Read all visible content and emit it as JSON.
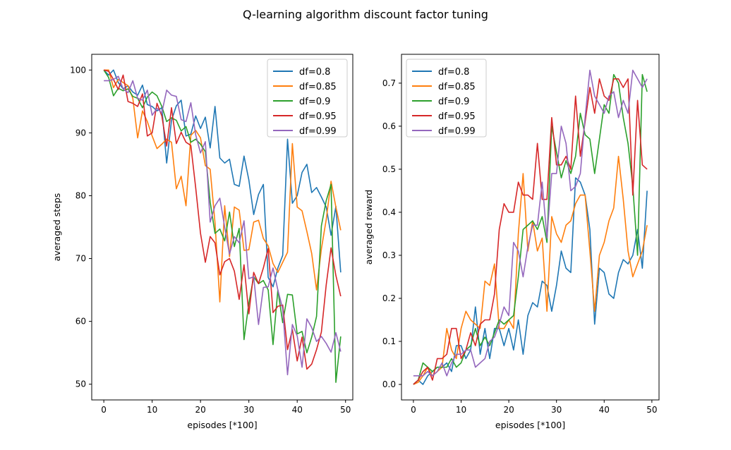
{
  "figure": {
    "title": "Q-learning algorithm discount factor tuning"
  },
  "chart_data": [
    {
      "type": "line",
      "xlabel": "episodes [*100]",
      "ylabel": "averaged steps",
      "xlim": [
        -2.5,
        51.5
      ],
      "ylim": [
        47.5,
        102.5
      ],
      "xticks": [
        0,
        10,
        20,
        30,
        40,
        50
      ],
      "yticks": [
        50,
        60,
        70,
        80,
        90,
        100
      ],
      "legend": "top-right",
      "grid": false,
      "x": [
        0,
        1,
        2,
        3,
        4,
        5,
        6,
        7,
        8,
        9,
        10,
        11,
        12,
        13,
        14,
        15,
        16,
        17,
        18,
        19,
        20,
        21,
        22,
        23,
        24,
        25,
        26,
        27,
        28,
        29,
        30,
        31,
        32,
        33,
        34,
        35,
        36,
        37,
        38,
        39,
        40,
        41,
        42,
        43,
        44,
        45,
        46,
        47,
        48,
        49
      ],
      "series": [
        {
          "name": "df=0.8",
          "color": "#1f77b4",
          "values": [
            100,
            99.2,
            100,
            98,
            97,
            97.5,
            96.5,
            96,
            97.6,
            94.5,
            94.2,
            93.5,
            94,
            85.2,
            92,
            94.3,
            95.2,
            89.5,
            89.8,
            92.7,
            90.7,
            92.5,
            87.6,
            94.2,
            86,
            85.2,
            85.8,
            81.8,
            81.5,
            86.3,
            82.5,
            77,
            80.2,
            81.8,
            67,
            65.5,
            68.5,
            70.5,
            89,
            78.8,
            80,
            83.7,
            85,
            80.5,
            81.3,
            79.8,
            78.2,
            73.7,
            78.3,
            67.8
          ]
        },
        {
          "name": "df=0.85",
          "color": "#ff7f0e",
          "values": [
            100,
            100,
            97.2,
            98.5,
            98,
            97.5,
            95.5,
            89.2,
            93.5,
            91.8,
            89.5,
            87.5,
            88.2,
            89,
            88.5,
            81.1,
            83.1,
            78.4,
            89.6,
            90.4,
            89.2,
            84.8,
            84.2,
            75.7,
            63.1,
            78.4,
            70.3,
            78.2,
            77.7,
            71.3,
            71.4,
            75.8,
            76.1,
            73.2,
            72,
            69.2,
            67.8,
            69.4,
            71,
            88.3,
            78.2,
            77.6,
            74.3,
            70.8,
            65,
            71.5,
            76.2,
            82.3,
            78.2,
            74.5
          ]
        },
        {
          "name": "df=0.9",
          "color": "#2ca02c",
          "values": [
            100,
            98.8,
            95.9,
            97.1,
            96.7,
            97,
            95.8,
            95.5,
            94,
            95.7,
            96.5,
            95.9,
            94.2,
            91.8,
            92.4,
            92,
            90.3,
            91,
            88.5,
            89,
            88.2,
            87,
            79,
            74,
            74.7,
            72.8,
            77.4,
            71.9,
            74.8,
            57.1,
            62.9,
            67.1,
            66,
            66.5,
            65,
            56.3,
            65,
            59.8,
            64.3,
            64.2,
            58,
            58.4,
            55,
            57.5,
            60.8,
            75.2,
            79.2,
            81.8,
            50.3,
            57.6
          ]
        },
        {
          "name": "df=0.95",
          "color": "#d62728",
          "values": [
            100,
            99.8,
            98.5,
            96.9,
            99.2,
            95,
            94.7,
            94.2,
            96.2,
            89.5,
            90,
            94.7,
            92.7,
            87.9,
            94,
            88.3,
            90.1,
            88.5,
            88,
            81.3,
            74,
            69.4,
            73.5,
            72.5,
            67.4,
            69.5,
            70,
            68,
            63.5,
            69,
            61.2,
            67.8,
            66,
            68.5,
            71.6,
            61.4,
            62.4,
            62.6,
            55.5,
            58.7,
            53.7,
            57.5,
            52.4,
            53.2,
            55.5,
            58.3,
            65.8,
            71.7,
            67.3,
            64
          ]
        },
        {
          "name": "df=0.99",
          "color": "#9467bd",
          "values": [
            98.3,
            98.3,
            98.5,
            99,
            97,
            96.4,
            98.3,
            95.5,
            95.2,
            96.8,
            92.8,
            93.9,
            93.2,
            96.8,
            96,
            95.8,
            92.1,
            91.8,
            94.8,
            89.7,
            86.8,
            88.6,
            75.8,
            78.4,
            79.6,
            75,
            70.7,
            73.5,
            72.5,
            76,
            66.8,
            67.1,
            59.5,
            65.4,
            65.5,
            68.5,
            65,
            62,
            51.5,
            59.5,
            57.7,
            52.7,
            60.4,
            59,
            56.8,
            57.6,
            56.5,
            55.1,
            58.2,
            55.2
          ]
        }
      ]
    },
    {
      "type": "line",
      "xlabel": "episodes [*100]",
      "ylabel": "averaged reward",
      "xlim": [
        -2.5,
        51.5
      ],
      "ylim": [
        -0.036,
        0.767
      ],
      "xticks": [
        0,
        10,
        20,
        30,
        40,
        50
      ],
      "yticks": [
        0.0,
        0.1,
        0.2,
        0.3,
        0.4,
        0.5,
        0.6,
        0.7
      ],
      "ytick_labels": [
        "0.0",
        "0.1",
        "0.2",
        "0.3",
        "0.4",
        "0.5",
        "0.6",
        "0.7"
      ],
      "legend": "top-left",
      "grid": false,
      "x": [
        0,
        1,
        2,
        3,
        4,
        5,
        6,
        7,
        8,
        9,
        10,
        11,
        12,
        13,
        14,
        15,
        16,
        17,
        18,
        19,
        20,
        21,
        22,
        23,
        24,
        25,
        26,
        27,
        28,
        29,
        30,
        31,
        32,
        33,
        34,
        35,
        36,
        37,
        38,
        39,
        40,
        41,
        42,
        43,
        44,
        45,
        46,
        47,
        48,
        49
      ],
      "series": [
        {
          "name": "df=0.8",
          "color": "#1f77b4",
          "values": [
            0,
            0.01,
            0,
            0.02,
            0.03,
            0.04,
            0.04,
            0.05,
            0.03,
            0.09,
            0.09,
            0.06,
            0.08,
            0.18,
            0.07,
            0.13,
            0.06,
            0.13,
            0.13,
            0.09,
            0.13,
            0.08,
            0.15,
            0.07,
            0.16,
            0.19,
            0.18,
            0.24,
            0.23,
            0.17,
            0.23,
            0.31,
            0.27,
            0.26,
            0.48,
            0.47,
            0.44,
            0.36,
            0.14,
            0.27,
            0.26,
            0.21,
            0.2,
            0.26,
            0.29,
            0.28,
            0.3,
            0.36,
            0.27,
            0.45
          ]
        },
        {
          "name": "df=0.85",
          "color": "#ff7f0e",
          "values": [
            0,
            0.005,
            0.02,
            0.04,
            0.02,
            0.03,
            0.04,
            0.13,
            0.08,
            0.06,
            0.13,
            0.17,
            0.15,
            0.14,
            0.13,
            0.24,
            0.23,
            0.28,
            0.13,
            0.13,
            0.15,
            0.13,
            0.35,
            0.49,
            0.31,
            0.38,
            0.31,
            0.34,
            0.17,
            0.39,
            0.35,
            0.33,
            0.37,
            0.38,
            0.42,
            0.44,
            0.44,
            0.31,
            0.17,
            0.3,
            0.33,
            0.38,
            0.41,
            0.53,
            0.43,
            0.31,
            0.25,
            0.28,
            0.31,
            0.37
          ]
        },
        {
          "name": "df=0.9",
          "color": "#2ca02c",
          "values": [
            0,
            0.01,
            0.05,
            0.04,
            0.03,
            0.04,
            0.04,
            0.04,
            0.06,
            0.04,
            0.05,
            0.08,
            0.09,
            0.13,
            0.09,
            0.11,
            0.09,
            0.12,
            0.15,
            0.14,
            0.15,
            0.16,
            0.25,
            0.36,
            0.37,
            0.38,
            0.36,
            0.39,
            0.33,
            0.6,
            0.54,
            0.48,
            0.52,
            0.49,
            0.53,
            0.63,
            0.58,
            0.57,
            0.49,
            0.57,
            0.65,
            0.63,
            0.72,
            0.7,
            0.62,
            0.56,
            0.46,
            0.3,
            0.72,
            0.68
          ]
        },
        {
          "name": "df=0.95",
          "color": "#d62728",
          "values": [
            0,
            0.01,
            0.03,
            0.04,
            0.01,
            0.06,
            0.06,
            0.07,
            0.13,
            0.13,
            0.06,
            0.08,
            0.12,
            0.09,
            0.14,
            0.15,
            0.15,
            0.21,
            0.36,
            0.42,
            0.4,
            0.4,
            0.47,
            0.44,
            0.44,
            0.43,
            0.56,
            0.43,
            0.43,
            0.62,
            0.51,
            0.51,
            0.53,
            0.5,
            0.67,
            0.53,
            0.61,
            0.69,
            0.63,
            0.71,
            0.67,
            0.66,
            0.71,
            0.71,
            0.69,
            0.71,
            0.44,
            0.66,
            0.51,
            0.5
          ]
        },
        {
          "name": "df=0.99",
          "color": "#9467bd",
          "values": [
            0.02,
            0.02,
            0.02,
            0.03,
            0.02,
            0.03,
            0.05,
            0.02,
            0.05,
            0.07,
            0.07,
            0.08,
            0.08,
            0.04,
            0.05,
            0.06,
            0.1,
            0.11,
            0.14,
            0.18,
            0.16,
            0.33,
            0.31,
            0.25,
            0.32,
            0.37,
            0.37,
            0.47,
            0.34,
            0.49,
            0.49,
            0.6,
            0.56,
            0.45,
            0.46,
            0.49,
            0.62,
            0.73,
            0.67,
            0.65,
            0.63,
            0.67,
            0.68,
            0.62,
            0.66,
            0.63,
            0.73,
            0.71,
            0.69,
            0.71
          ]
        }
      ]
    }
  ]
}
